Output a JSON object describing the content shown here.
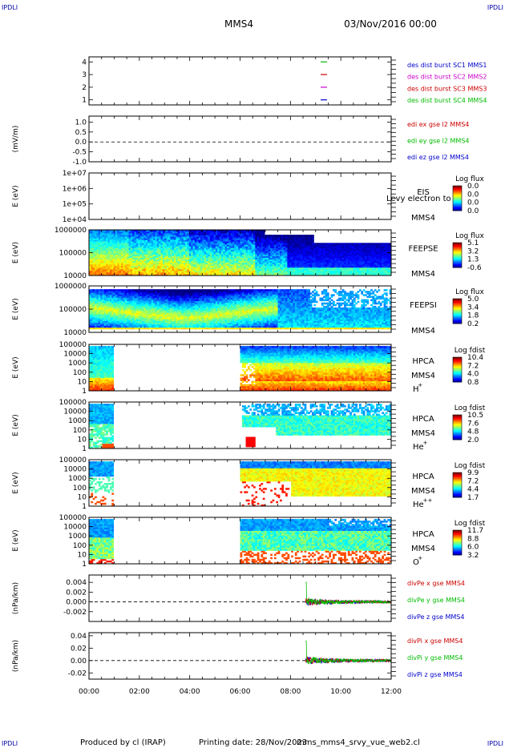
{
  "header": {
    "corner_tl": "IPDLI",
    "corner_tr": "IPDLI",
    "corner_bl": "IPDLI",
    "corner_br": "IPDLI",
    "spacecraft": "MMS4",
    "datetime": "03/Nov/2016 00:00"
  },
  "footer": {
    "produced_by": "Produced by cl (IRAP)",
    "printing_date": "Printing date: 28/Nov/2023",
    "filename": "mms_mms4_srvy_vue_web2.cl"
  },
  "chart_data": {
    "type": "multi-panel-timeseries",
    "x_ticks": [
      "00:00",
      "02:00",
      "04:00",
      "06:00",
      "08:00",
      "10:00",
      "12:00"
    ],
    "x_range_hours": [
      0,
      12
    ],
    "panels": [
      {
        "id": "burst",
        "type": "line",
        "ylabel": "",
        "yticks": [
          "1",
          "2",
          "3",
          "4"
        ],
        "ylim": [
          0.6,
          4.4
        ],
        "legend": [
          {
            "text": "des dist burst SC1 MMS1",
            "color": "#0000cc"
          },
          {
            "text": "des dist burst SC2 MMS2",
            "color": "#cc00cc"
          },
          {
            "text": "des dist burst SC3 MMS3",
            "color": "#cc0000"
          },
          {
            "text": "des dist burst SC4 MMS4",
            "color": "#00bb00"
          }
        ],
        "marks": [
          {
            "y": 4,
            "color": "#00bb00",
            "start_hour": 9.2,
            "end_hour": 9.45
          },
          {
            "y": 3,
            "color": "#cc0000",
            "start_hour": 9.2,
            "end_hour": 9.45
          },
          {
            "y": 2,
            "color": "#cc00cc",
            "start_hour": 9.2,
            "end_hour": 9.45
          },
          {
            "y": 1,
            "color": "#0000cc",
            "start_hour": 9.2,
            "end_hour": 9.45
          }
        ]
      },
      {
        "id": "edi",
        "type": "line",
        "ylabel": "(mV/m)",
        "yticks": [
          "1.0",
          "0.5",
          "0.0",
          "-0.5",
          "-1.0"
        ],
        "ylim": [
          -1.0,
          1.3
        ],
        "zero_line": true,
        "legend": [
          {
            "text": "edi ex gse l2 MMS4",
            "color": "#cc0000"
          },
          {
            "text": "edi ey gse l2 MMS4",
            "color": "#00bb00"
          },
          {
            "text": "edi ez gse l2 MMS4",
            "color": "#0000cc"
          }
        ]
      },
      {
        "id": "eis",
        "type": "heatmap",
        "ylabel": "E (eV)",
        "yticks": [
          "1e+07",
          "1e+06",
          "1e+05",
          "1e+04"
        ],
        "log_y": [
          4,
          7
        ],
        "instrument": "EIS",
        "instrument_line2": "Levy electron to",
        "sc": "MMS4",
        "cbar_title": "Log flux",
        "cbar_ticks": [
          "0.0",
          "0.0",
          "0.0",
          "0.0"
        ]
      },
      {
        "id": "feepse",
        "type": "heatmap",
        "ylabel": "E (eV)",
        "yticks": [
          "1000000",
          "100000",
          "10000"
        ],
        "log_y": [
          4,
          6
        ],
        "instrument": "FEEPSE",
        "sc": "MMS4",
        "cbar_title": "Log flux",
        "cbar_ticks": [
          "5.1",
          "3.2",
          "1.3",
          "-0.6"
        ]
      },
      {
        "id": "feepsi",
        "type": "heatmap",
        "ylabel": "E (eV)",
        "yticks": [
          "1000000",
          "100000",
          "10000"
        ],
        "log_y": [
          4,
          6
        ],
        "instrument": "FEEPSI",
        "sc": "MMS4",
        "cbar_title": "Log flux",
        "cbar_ticks": [
          "5.0",
          "3.4",
          "1.8",
          "0.2"
        ]
      },
      {
        "id": "hpca_h",
        "type": "heatmap",
        "ylabel": "E (eV)",
        "yticks": [
          "100000",
          "10000",
          "1000",
          "100",
          "10",
          "1"
        ],
        "log_y": [
          0,
          5
        ],
        "instrument": "HPCA",
        "sc": "MMS4",
        "species": "H",
        "charge": "+",
        "cbar_title": "Log fdist",
        "cbar_ticks": [
          "10.4",
          "7.2",
          "4.0",
          "0.8"
        ]
      },
      {
        "id": "hpca_he",
        "type": "heatmap",
        "ylabel": "E (eV)",
        "yticks": [
          "100000",
          "10000",
          "1000",
          "100",
          "10",
          "1"
        ],
        "log_y": [
          0,
          5
        ],
        "instrument": "HPCA",
        "sc": "MMS4",
        "species": "He",
        "charge": "+",
        "cbar_title": "Log fdist",
        "cbar_ticks": [
          "10.5",
          "7.6",
          "4.8",
          "2.0"
        ]
      },
      {
        "id": "hpca_hepp",
        "type": "heatmap",
        "ylabel": "E (eV)",
        "yticks": [
          "100000",
          "10000",
          "1000",
          "100",
          "10",
          "1"
        ],
        "log_y": [
          0,
          5
        ],
        "instrument": "HPCA",
        "sc": "MMS4",
        "species": "He",
        "charge": "++",
        "cbar_title": "Log fdist",
        "cbar_ticks": [
          "9.9",
          "7.2",
          "4.4",
          "1.7"
        ]
      },
      {
        "id": "hpca_o",
        "type": "heatmap",
        "ylabel": "E (eV)",
        "yticks": [
          "100000",
          "10000",
          "1000",
          "100",
          "10",
          "1"
        ],
        "log_y": [
          0,
          5
        ],
        "instrument": "HPCA",
        "sc": "MMS4",
        "species": "O",
        "charge": "+",
        "cbar_title": "Log fdist",
        "cbar_ticks": [
          "11.7",
          "8.8",
          "6.0",
          "3.2"
        ]
      },
      {
        "id": "divpe",
        "type": "line",
        "ylabel": "(nPa/km)",
        "yticks": [
          "0.004",
          "0.002",
          "0.000",
          "-0.002"
        ],
        "ylim": [
          -0.004,
          0.0055
        ],
        "zero_line": true,
        "legend": [
          {
            "text": "divPe x gse MMS4",
            "color": "#cc0000"
          },
          {
            "text": "divPe y gse MMS4",
            "color": "#00bb00"
          },
          {
            "text": "divPe z gse MMS4",
            "color": "#0000cc"
          }
        ]
      },
      {
        "id": "divpi",
        "type": "line",
        "ylabel": "(nPa/km)",
        "yticks": [
          "0.04",
          "0.02",
          "0.00",
          "-0.02"
        ],
        "ylim": [
          -0.03,
          0.045
        ],
        "zero_line": true,
        "legend": [
          {
            "text": "divPi x gse MMS4",
            "color": "#cc0000"
          },
          {
            "text": "divPi y gse MMS4",
            "color": "#00bb00"
          },
          {
            "text": "divPi z gse MMS4",
            "color": "#0000cc"
          }
        ]
      }
    ]
  }
}
